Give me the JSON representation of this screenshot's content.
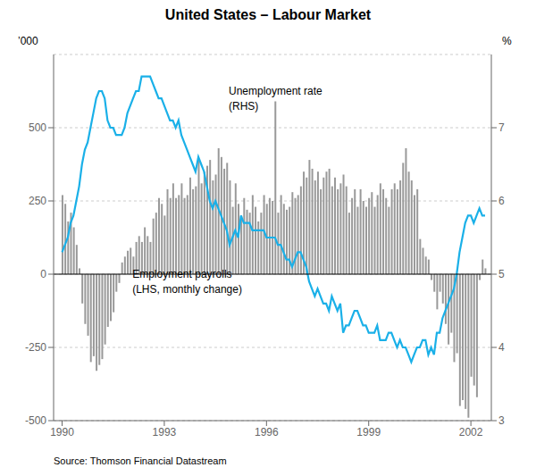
{
  "chart_data": {
    "type": "combo",
    "title": "United States – Labour Market",
    "source": "Source: Thomson Financial Datastream",
    "y_label": "’000",
    "y2_label": "%",
    "annotations": [
      [
        "Unemployment rate",
        "(RHS)"
      ],
      [
        "Employment payrolls",
        "(LHS, monthly change)"
      ]
    ],
    "xlim": [
      1989.75,
      2002.6
    ],
    "xticks": [
      1990,
      1993,
      1996,
      1999,
      2002
    ],
    "ylim": [
      -500,
      750
    ],
    "yticks": [
      -500,
      -250,
      0,
      250,
      500
    ],
    "y2lim": [
      3,
      8
    ],
    "y2ticks": [
      3,
      4,
      5,
      6,
      7
    ],
    "grid": true,
    "reference_lines": [
      {
        "axis": "y",
        "value": 0
      }
    ],
    "x": [
      1990.0,
      1990.083,
      1990.167,
      1990.25,
      1990.333,
      1990.417,
      1990.5,
      1990.583,
      1990.667,
      1990.75,
      1990.833,
      1990.917,
      1991.0,
      1991.083,
      1991.167,
      1991.25,
      1991.333,
      1991.417,
      1991.5,
      1991.583,
      1991.667,
      1991.75,
      1991.833,
      1991.917,
      1992.0,
      1992.083,
      1992.167,
      1992.25,
      1992.333,
      1992.417,
      1992.5,
      1992.583,
      1992.667,
      1992.75,
      1992.833,
      1992.917,
      1993.0,
      1993.083,
      1993.167,
      1993.25,
      1993.333,
      1993.417,
      1993.5,
      1993.583,
      1993.667,
      1993.75,
      1993.833,
      1993.917,
      1994.0,
      1994.083,
      1994.167,
      1994.25,
      1994.333,
      1994.417,
      1994.5,
      1994.583,
      1994.667,
      1994.75,
      1994.833,
      1994.917,
      1995.0,
      1995.083,
      1995.167,
      1995.25,
      1995.333,
      1995.417,
      1995.5,
      1995.583,
      1995.667,
      1995.75,
      1995.833,
      1995.917,
      1996.0,
      1996.083,
      1996.167,
      1996.25,
      1996.333,
      1996.417,
      1996.5,
      1996.583,
      1996.667,
      1996.75,
      1996.833,
      1996.917,
      1997.0,
      1997.083,
      1997.167,
      1997.25,
      1997.333,
      1997.417,
      1997.5,
      1997.583,
      1997.667,
      1997.75,
      1997.833,
      1997.917,
      1998.0,
      1998.083,
      1998.167,
      1998.25,
      1998.333,
      1998.417,
      1998.5,
      1998.583,
      1998.667,
      1998.75,
      1998.833,
      1998.917,
      1999.0,
      1999.083,
      1999.167,
      1999.25,
      1999.333,
      1999.417,
      1999.5,
      1999.583,
      1999.667,
      1999.75,
      1999.833,
      1999.917,
      2000.0,
      2000.083,
      2000.167,
      2000.25,
      2000.333,
      2000.417,
      2000.5,
      2000.583,
      2000.667,
      2000.75,
      2000.833,
      2000.917,
      2001.0,
      2001.083,
      2001.167,
      2001.25,
      2001.333,
      2001.417,
      2001.5,
      2001.583,
      2001.667,
      2001.75,
      2001.833,
      2001.917,
      2002.0,
      2002.083,
      2002.167,
      2002.25,
      2002.333,
      2002.417
    ],
    "series": [
      {
        "type": "bar",
        "color": "#999999",
        "values": [
          270,
          240,
          180,
          210,
          160,
          100,
          20,
          -100,
          -170,
          -210,
          -300,
          -280,
          -330,
          -310,
          -290,
          -240,
          -180,
          -160,
          -130,
          -60,
          -30,
          40,
          60,
          80,
          90,
          60,
          110,
          130,
          110,
          160,
          130,
          110,
          190,
          210,
          260,
          240,
          200,
          290,
          260,
          310,
          260,
          270,
          310,
          260,
          270,
          330,
          290,
          300,
          390,
          310,
          350,
          370,
          390,
          320,
          340,
          430,
          400,
          360,
          380,
          320,
          230,
          310,
          240,
          200,
          260,
          220,
          210,
          270,
          230,
          180,
          210,
          270,
          240,
          260,
          250,
          590,
          210,
          270,
          240,
          220,
          230,
          280,
          260,
          270,
          300,
          350,
          330,
          390,
          360,
          320,
          350,
          290,
          330,
          350,
          360,
          300,
          330,
          290,
          310,
          340,
          300,
          210,
          260,
          290,
          230,
          290,
          250,
          230,
          260,
          280,
          230,
          270,
          310,
          290,
          260,
          230,
          290,
          310,
          290,
          320,
          380,
          430,
          350,
          320,
          270,
          290,
          120,
          90,
          60,
          50,
          -20,
          -60,
          -120,
          -60,
          -100,
          -170,
          -240,
          -200,
          -300,
          -270,
          -450,
          -430,
          -460,
          -490,
          -350,
          -380,
          -420,
          -20,
          50,
          20
        ]
      },
      {
        "type": "line",
        "axis": "y2",
        "color": "#1ab0e8",
        "values": [
          5.3,
          5.4,
          5.5,
          5.7,
          5.8,
          6.0,
          6.2,
          6.5,
          6.7,
          6.8,
          7.0,
          7.2,
          7.4,
          7.5,
          7.5,
          7.4,
          7.1,
          7.0,
          7.0,
          6.9,
          6.9,
          6.9,
          7.0,
          7.2,
          7.3,
          7.4,
          7.5,
          7.5,
          7.7,
          7.7,
          7.7,
          7.7,
          7.6,
          7.5,
          7.4,
          7.4,
          7.3,
          7.2,
          7.1,
          7.1,
          7.0,
          7.1,
          6.9,
          6.8,
          6.7,
          6.6,
          6.5,
          6.4,
          6.6,
          6.5,
          6.4,
          6.2,
          6.0,
          5.9,
          6.0,
          5.9,
          5.8,
          5.7,
          5.6,
          5.4,
          5.5,
          5.6,
          5.5,
          5.8,
          5.7,
          5.7,
          5.7,
          5.6,
          5.6,
          5.6,
          5.6,
          5.6,
          5.5,
          5.5,
          5.5,
          5.5,
          5.4,
          5.4,
          5.3,
          5.2,
          5.2,
          5.1,
          5.2,
          5.3,
          5.3,
          5.2,
          5.1,
          4.9,
          4.8,
          4.7,
          4.8,
          4.7,
          4.6,
          4.6,
          4.5,
          4.7,
          4.6,
          4.5,
          4.6,
          4.2,
          4.3,
          4.3,
          4.4,
          4.5,
          4.5,
          4.4,
          4.3,
          4.3,
          4.2,
          4.2,
          4.2,
          4.3,
          4.1,
          4.1,
          4.1,
          4.2,
          4.2,
          4.1,
          4.0,
          4.1,
          4.0,
          4.0,
          3.9,
          3.8,
          3.9,
          4.0,
          4.0,
          4.1,
          4.1,
          3.9,
          4.0,
          3.9,
          4.2,
          4.2,
          4.4,
          4.5,
          4.6,
          4.7,
          4.8,
          5.0,
          5.3,
          5.5,
          5.7,
          5.8,
          5.8,
          5.7,
          5.8,
          5.9,
          5.8,
          5.8
        ]
      }
    ]
  }
}
